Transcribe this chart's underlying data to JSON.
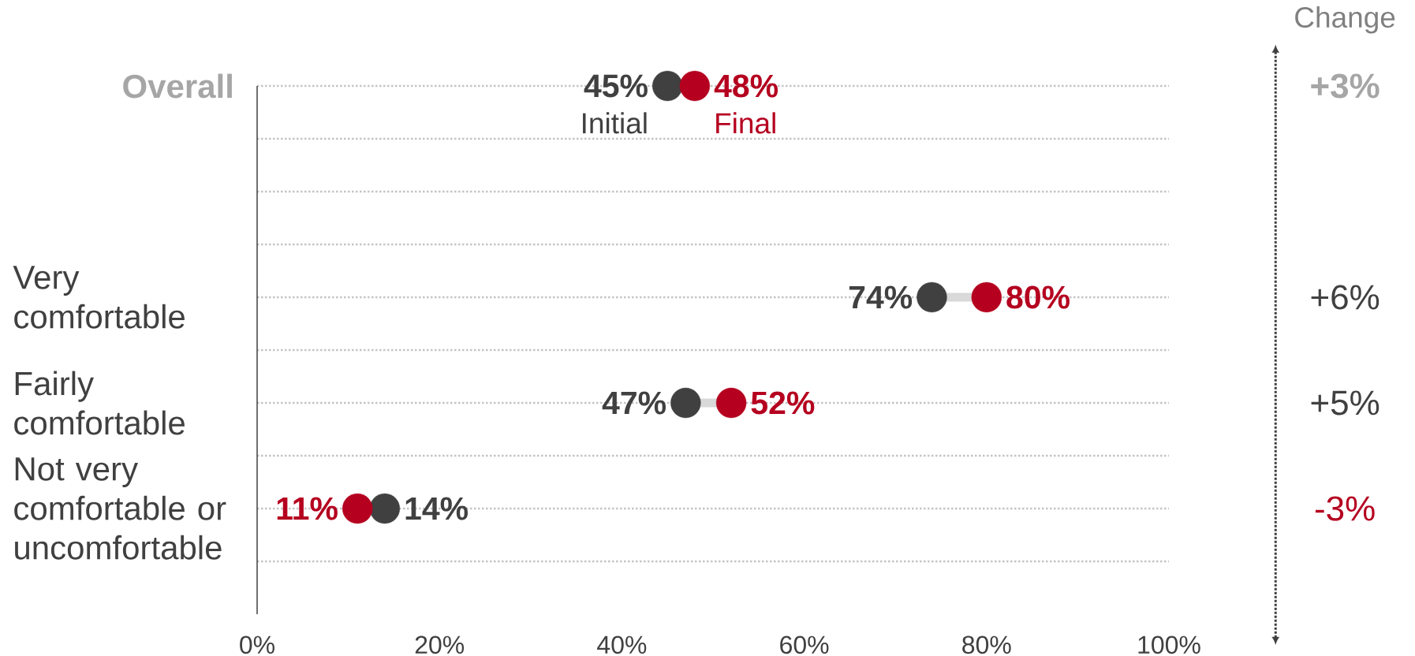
{
  "chart_data": {
    "type": "scatter",
    "orientation": "horizontal",
    "marker": "circle",
    "grid": "y",
    "categories": [
      "Overall",
      null,
      null,
      null,
      "Very comfortable",
      null,
      "Fairly comfortable",
      null,
      "Not very comfortable or uncomfortable",
      null
    ],
    "series": [
      {
        "name": "Initial",
        "color": "#404040",
        "values": [
          45,
          null,
          null,
          null,
          74,
          null,
          47,
          null,
          14,
          null
        ],
        "value_labels": [
          "45%",
          null,
          null,
          null,
          "74%",
          null,
          "47%",
          null,
          "14%",
          null
        ]
      },
      {
        "name": "Final",
        "color": "#b5001f",
        "values": [
          48,
          null,
          null,
          null,
          80,
          null,
          52,
          null,
          11,
          null
        ],
        "value_labels": [
          "48%",
          null,
          null,
          null,
          "80%",
          null,
          "52%",
          null,
          "11%",
          null
        ]
      }
    ],
    "xlim": [
      0,
      100
    ],
    "xticks": [
      {
        "value": 0,
        "label": "0%"
      },
      {
        "value": 20,
        "label": "20%"
      },
      {
        "value": 40,
        "label": "40%"
      },
      {
        "value": 60,
        "label": "60%"
      },
      {
        "value": 80,
        "label": "80%"
      },
      {
        "value": 100,
        "label": "100%"
      }
    ],
    "annotations": [
      "Change",
      "+3%",
      "+6%",
      "+5%",
      "-3%"
    ]
  }
}
